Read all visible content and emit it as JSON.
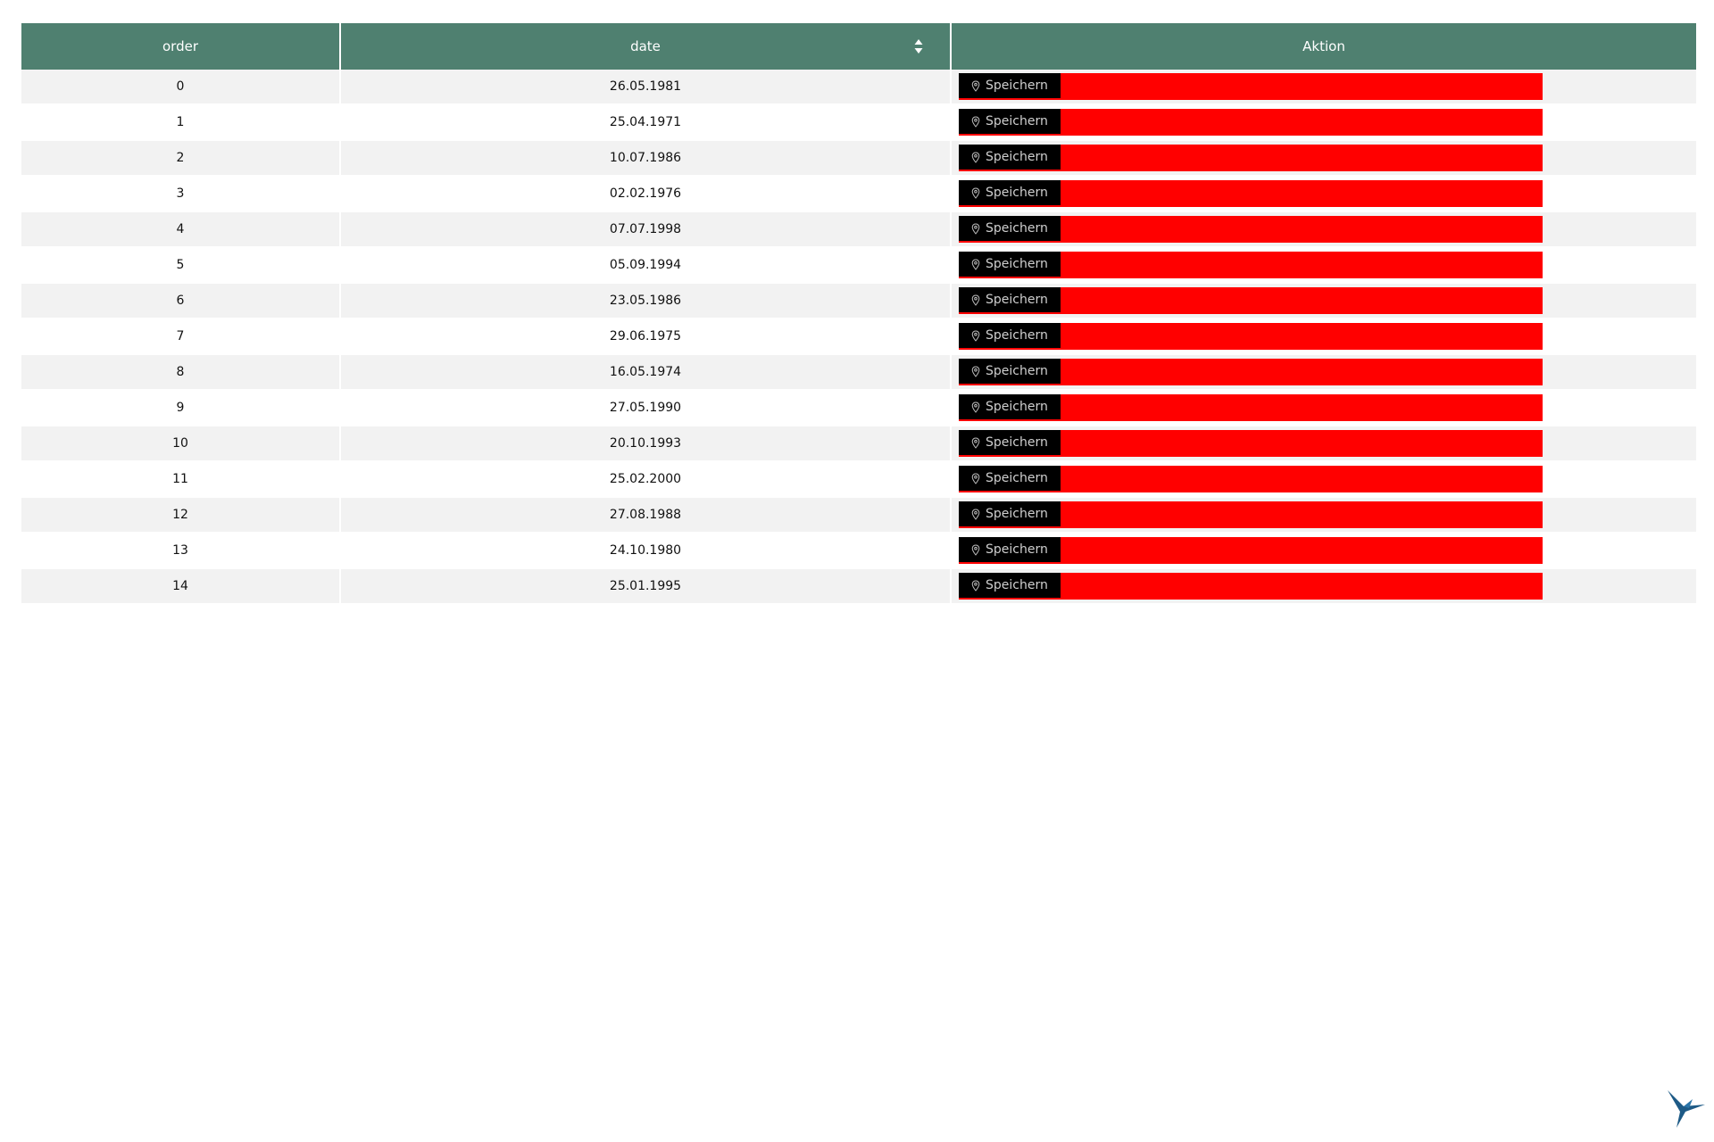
{
  "colors": {
    "header_bg": "#4f8070",
    "alt_row_bg": "#f2f2f2",
    "button_bg": "#000000",
    "bar_color": "#ff0000",
    "logo_color": "#1d5a86"
  },
  "table": {
    "columns": [
      {
        "key": "order",
        "label": "order"
      },
      {
        "key": "date",
        "label": "date",
        "sortable": true
      },
      {
        "key": "action",
        "label": "Aktion"
      }
    ],
    "save_label": "Speichern",
    "rows": [
      {
        "order": "0",
        "date": "26.05.1981"
      },
      {
        "order": "1",
        "date": "25.04.1971"
      },
      {
        "order": "2",
        "date": "10.07.1986"
      },
      {
        "order": "3",
        "date": "02.02.1976"
      },
      {
        "order": "4",
        "date": "07.07.1998"
      },
      {
        "order": "5",
        "date": "05.09.1994"
      },
      {
        "order": "6",
        "date": "23.05.1986"
      },
      {
        "order": "7",
        "date": "29.06.1975"
      },
      {
        "order": "8",
        "date": "16.05.1974"
      },
      {
        "order": "9",
        "date": "27.05.1990"
      },
      {
        "order": "10",
        "date": "20.10.1993"
      },
      {
        "order": "11",
        "date": "25.02.2000"
      },
      {
        "order": "12",
        "date": "27.08.1988"
      },
      {
        "order": "13",
        "date": "24.10.1980"
      },
      {
        "order": "14",
        "date": "25.01.1995"
      }
    ]
  },
  "icons": {
    "sort": "sort-icon",
    "pin": "pin-icon",
    "logo": "bird-logo-icon"
  }
}
